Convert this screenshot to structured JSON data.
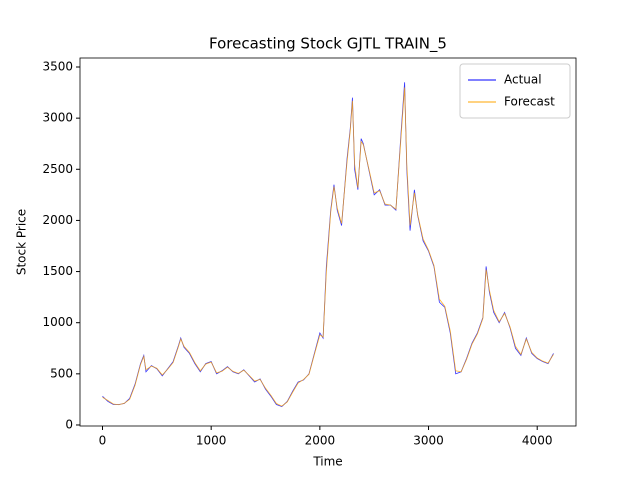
{
  "chart_data": {
    "type": "line",
    "title": "Forecasting Stock GJTL TRAIN_5",
    "x_label": "Time",
    "y_label": "Stock Price",
    "x": [
      0,
      50,
      100,
      150,
      200,
      250,
      300,
      350,
      380,
      400,
      450,
      500,
      550,
      600,
      650,
      700,
      720,
      750,
      800,
      850,
      900,
      950,
      1000,
      1050,
      1100,
      1150,
      1200,
      1250,
      1300,
      1350,
      1400,
      1450,
      1500,
      1550,
      1600,
      1650,
      1700,
      1750,
      1800,
      1850,
      1900,
      1950,
      2000,
      2030,
      2060,
      2100,
      2130,
      2160,
      2200,
      2250,
      2280,
      2300,
      2320,
      2350,
      2380,
      2400,
      2450,
      2500,
      2550,
      2600,
      2650,
      2700,
      2750,
      2780,
      2800,
      2830,
      2870,
      2900,
      2950,
      3000,
      3050,
      3100,
      3150,
      3200,
      3250,
      3300,
      3350,
      3400,
      3450,
      3500,
      3530,
      3560,
      3600,
      3650,
      3700,
      3750,
      3800,
      3850,
      3900,
      3950,
      4000,
      4050,
      4100,
      4150
    ],
    "series": [
      {
        "name": "Actual",
        "color": "#0000ff",
        "values": [
          280,
          230,
          200,
          200,
          210,
          260,
          400,
          600,
          680,
          520,
          580,
          550,
          480,
          550,
          620,
          780,
          850,
          760,
          700,
          600,
          520,
          600,
          620,
          500,
          530,
          570,
          520,
          500,
          540,
          480,
          420,
          450,
          350,
          280,
          200,
          180,
          230,
          330,
          420,
          440,
          500,
          700,
          900,
          850,
          1550,
          2100,
          2350,
          2100,
          1950,
          2600,
          2900,
          3200,
          2500,
          2300,
          2800,
          2750,
          2500,
          2250,
          2300,
          2150,
          2150,
          2100,
          2900,
          3350,
          2500,
          1900,
          2300,
          2050,
          1800,
          1700,
          1550,
          1200,
          1150,
          900,
          500,
          520,
          650,
          800,
          900,
          1050,
          1550,
          1300,
          1100,
          1000,
          1100,
          950,
          750,
          680,
          850,
          700,
          650,
          620,
          600,
          700
        ]
      },
      {
        "name": "Forecast",
        "color": "#ffa500",
        "values": [
          270,
          240,
          205,
          198,
          212,
          250,
          390,
          590,
          670,
          540,
          575,
          555,
          490,
          545,
          610,
          770,
          840,
          770,
          710,
          610,
          530,
          595,
          615,
          510,
          525,
          565,
          525,
          505,
          535,
          485,
          430,
          445,
          360,
          290,
          210,
          185,
          225,
          320,
          410,
          445,
          495,
          690,
          880,
          860,
          1500,
          2080,
          2330,
          2120,
          1970,
          2570,
          2880,
          3170,
          2550,
          2320,
          2770,
          2740,
          2510,
          2270,
          2290,
          2160,
          2150,
          2110,
          2860,
          3300,
          2550,
          1950,
          2270,
          2060,
          1820,
          1710,
          1560,
          1230,
          1160,
          920,
          530,
          520,
          640,
          790,
          890,
          1040,
          1520,
          1320,
          1120,
          1010,
          1090,
          960,
          770,
          690,
          840,
          710,
          655,
          625,
          605,
          690
        ]
      }
    ],
    "xlim": [
      -207,
      4357
    ],
    "ylim": [
      -10,
      3588
    ],
    "xticks": [
      0,
      1000,
      2000,
      3000,
      4000
    ],
    "yticks": [
      0,
      500,
      1000,
      1500,
      2000,
      2500,
      3000,
      3500
    ],
    "legend": "upper right"
  }
}
